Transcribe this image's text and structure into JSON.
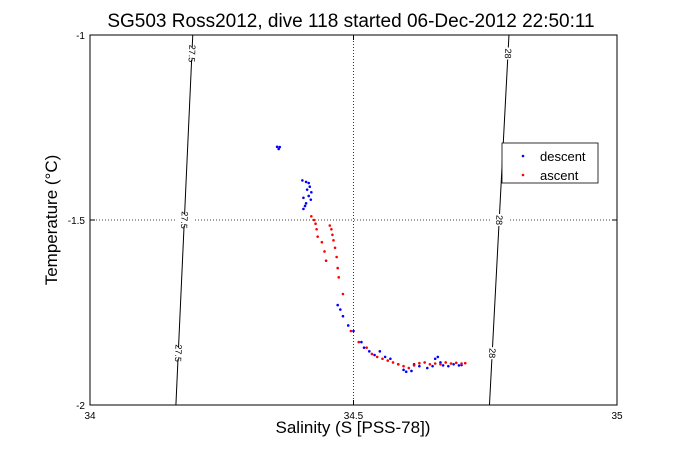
{
  "chart_data": {
    "type": "scatter",
    "title": "SG503 Ross2012, dive 118 started 06-Dec-2012 22:50:11",
    "xlabel": "Salinity (S [PSS-78])",
    "ylabel": "Temperature (°C)",
    "xlim": [
      34,
      35
    ],
    "ylim": [
      -2,
      -1
    ],
    "x_ticks": [
      "34",
      "34.5",
      "35"
    ],
    "y_ticks": [
      "-1",
      "-1.5",
      "-2"
    ],
    "grid": "dotted at 34.5 and -1.5",
    "legend_position": "right",
    "series": [
      {
        "name": "descent",
        "color": "#0000ff",
        "points": [
          [
            34.355,
            -1.302
          ],
          [
            34.358,
            -1.308
          ],
          [
            34.36,
            -1.303
          ],
          [
            34.403,
            -1.393
          ],
          [
            34.41,
            -1.397
          ],
          [
            34.415,
            -1.4
          ],
          [
            34.417,
            -1.41
          ],
          [
            34.412,
            -1.418
          ],
          [
            34.405,
            -1.44
          ],
          [
            34.41,
            -1.455
          ],
          [
            34.415,
            -1.435
          ],
          [
            34.42,
            -1.425
          ],
          [
            34.419,
            -1.445
          ],
          [
            34.405,
            -1.47
          ],
          [
            34.408,
            -1.462
          ],
          [
            34.47,
            -1.73
          ],
          [
            34.475,
            -1.742
          ],
          [
            34.48,
            -1.76
          ],
          [
            34.49,
            -1.785
          ],
          [
            34.5,
            -1.8
          ],
          [
            34.515,
            -1.83
          ],
          [
            34.52,
            -1.845
          ],
          [
            34.53,
            -1.855
          ],
          [
            34.54,
            -1.865
          ],
          [
            34.55,
            -1.855
          ],
          [
            34.56,
            -1.87
          ],
          [
            34.57,
            -1.875
          ],
          [
            34.585,
            -1.89
          ],
          [
            34.595,
            -1.905
          ],
          [
            34.6,
            -1.91
          ],
          [
            34.61,
            -1.908
          ],
          [
            34.615,
            -1.89
          ],
          [
            34.625,
            -1.895
          ],
          [
            34.64,
            -1.9
          ],
          [
            34.65,
            -1.895
          ],
          [
            34.655,
            -1.875
          ],
          [
            34.66,
            -1.87
          ],
          [
            34.665,
            -1.885
          ],
          [
            34.67,
            -1.893
          ],
          [
            34.68,
            -1.895
          ],
          [
            34.69,
            -1.89
          ],
          [
            34.7,
            -1.893
          ],
          [
            34.705,
            -1.892
          ]
        ]
      },
      {
        "name": "ascent",
        "color": "#ff0000",
        "points": [
          [
            34.42,
            -1.49
          ],
          [
            34.425,
            -1.5
          ],
          [
            34.428,
            -1.51
          ],
          [
            34.43,
            -1.525
          ],
          [
            34.432,
            -1.545
          ],
          [
            34.44,
            -1.56
          ],
          [
            34.445,
            -1.585
          ],
          [
            34.448,
            -1.61
          ],
          [
            34.455,
            -1.515
          ],
          [
            34.458,
            -1.525
          ],
          [
            34.46,
            -1.54
          ],
          [
            34.462,
            -1.555
          ],
          [
            34.465,
            -1.575
          ],
          [
            34.468,
            -1.6
          ],
          [
            34.47,
            -1.63
          ],
          [
            34.472,
            -1.655
          ],
          [
            34.48,
            -1.7
          ],
          [
            34.495,
            -1.8
          ],
          [
            34.51,
            -1.83
          ],
          [
            34.525,
            -1.845
          ],
          [
            34.535,
            -1.862
          ],
          [
            34.545,
            -1.87
          ],
          [
            34.555,
            -1.875
          ],
          [
            34.565,
            -1.88
          ],
          [
            34.575,
            -1.885
          ],
          [
            34.585,
            -1.89
          ],
          [
            34.595,
            -1.895
          ],
          [
            34.605,
            -1.9
          ],
          [
            34.615,
            -1.893
          ],
          [
            34.625,
            -1.887
          ],
          [
            34.635,
            -1.885
          ],
          [
            34.645,
            -1.89
          ],
          [
            34.655,
            -1.888
          ],
          [
            34.665,
            -1.89
          ],
          [
            34.675,
            -1.885
          ],
          [
            34.685,
            -1.888
          ],
          [
            34.695,
            -1.886
          ],
          [
            34.705,
            -1.888
          ],
          [
            34.712,
            -1.887
          ]
        ]
      }
    ],
    "contours": [
      {
        "label": "27.5",
        "line": [
          [
            34.163,
            -2
          ],
          [
            34.195,
            -1
          ]
        ]
      },
      {
        "label": "28",
        "line": [
          [
            34.758,
            -2
          ],
          [
            34.795,
            -1
          ]
        ]
      }
    ]
  }
}
